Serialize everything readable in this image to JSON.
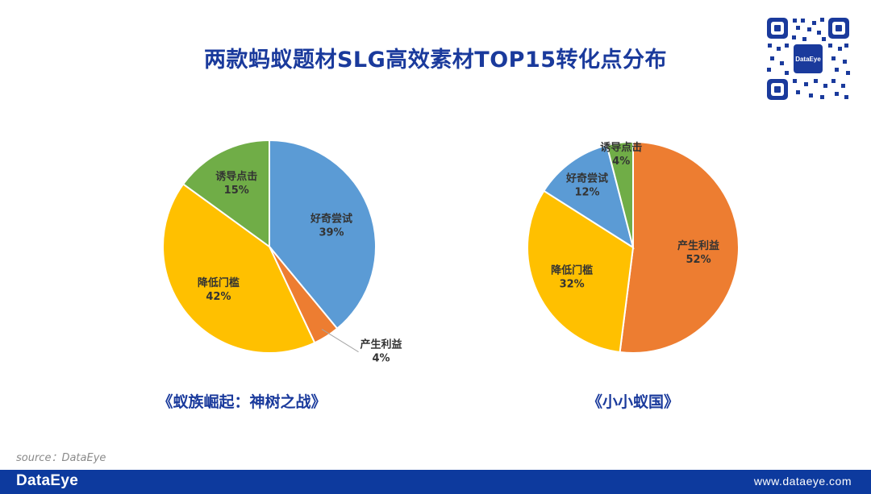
{
  "title": "两款蚂蚁题材SLG高效素材TOP15转化点分布",
  "qr_label": "DataEye",
  "chart_data": [
    {
      "type": "pie",
      "title": "《蚁族崛起：神树之战》",
      "slices": [
        {
          "name": "好奇尝试",
          "value": 39,
          "label": "39%",
          "color": "#5b9bd5"
        },
        {
          "name": "产生利益",
          "value": 4,
          "label": "4%",
          "color": "#ed7d31"
        },
        {
          "name": "降低门槛",
          "value": 42,
          "label": "42%",
          "color": "#ffc000"
        },
        {
          "name": "诱导点击",
          "value": 15,
          "label": "15%",
          "color": "#70ad47"
        }
      ]
    },
    {
      "type": "pie",
      "title": "《小小蚁国》",
      "slices": [
        {
          "name": "产生利益",
          "value": 52,
          "label": "52%",
          "color": "#ed7d31"
        },
        {
          "name": "降低门槛",
          "value": 32,
          "label": "32%",
          "color": "#ffc000"
        },
        {
          "name": "好奇尝试",
          "value": 12,
          "label": "12%",
          "color": "#5b9bd5"
        },
        {
          "name": "诱导点击",
          "value": 4,
          "label": "4%",
          "color": "#70ad47"
        }
      ]
    }
  ],
  "source": "source：DataEye",
  "footer": {
    "brand": "DataEye",
    "url": "www.dataeye.com"
  }
}
